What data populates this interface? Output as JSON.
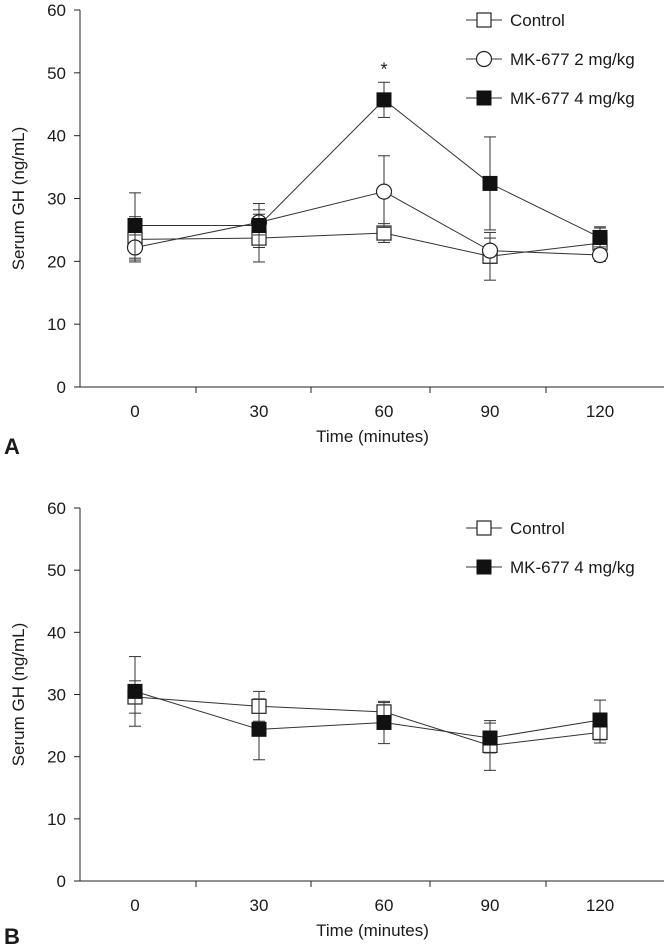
{
  "chart_data": [
    {
      "type": "line",
      "panel_label": "A",
      "xlabel": "Time (minutes)",
      "ylabel": "Serum GH (ng/mL)",
      "ylim": [
        0,
        60
      ],
      "yticks": [
        0,
        10,
        20,
        30,
        40,
        50,
        60
      ],
      "x": [
        0,
        30,
        60,
        90,
        120
      ],
      "xtick_labels": [
        "0",
        "30",
        "60",
        "90",
        "120"
      ],
      "legend_position": "top-right",
      "series": [
        {
          "name": "Control",
          "marker": "open-square",
          "values": [
            23.5,
            23.7,
            24.5,
            20.8,
            22.9
          ],
          "errors": [
            3.6,
            3.8,
            1.5,
            3.8,
            2.6
          ]
        },
        {
          "name": "MK-677 2 mg/kg",
          "marker": "open-circle",
          "values": [
            22.2,
            26.2,
            31.1,
            21.7,
            21.0
          ],
          "errors": [
            2.0,
            2.0,
            5.7,
            2.0,
            1.0
          ]
        },
        {
          "name": "MK-677 4 mg/kg",
          "marker": "filled-square",
          "values": [
            25.7,
            25.7,
            45.7,
            32.4,
            23.8
          ],
          "errors": [
            5.2,
            3.5,
            2.8,
            7.4,
            1.5
          ]
        }
      ],
      "annotations": [
        {
          "text": "*",
          "x": 60,
          "y": 50.5
        }
      ]
    },
    {
      "type": "line",
      "panel_label": "B",
      "xlabel": "Time (minutes)",
      "ylabel": "Serum GH (ng/mL)",
      "ylim": [
        0,
        60
      ],
      "yticks": [
        0,
        10,
        20,
        30,
        40,
        50,
        60
      ],
      "x": [
        0,
        30,
        60,
        90,
        120
      ],
      "xtick_labels": [
        "0",
        "30",
        "60",
        "90",
        "120"
      ],
      "legend_position": "top-right",
      "series": [
        {
          "name": "Control",
          "marker": "open-square",
          "values": [
            29.6,
            28.1,
            27.2,
            21.8,
            23.9
          ],
          "errors": [
            2.6,
            2.4,
            1.5,
            4.0,
            1.7
          ]
        },
        {
          "name": "MK-677 4 mg/kg",
          "marker": "filled-square",
          "values": [
            30.5,
            24.4,
            25.5,
            23.0,
            25.9
          ],
          "errors": [
            5.6,
            4.9,
            3.4,
            2.4,
            3.2
          ]
        }
      ],
      "annotations": []
    }
  ]
}
